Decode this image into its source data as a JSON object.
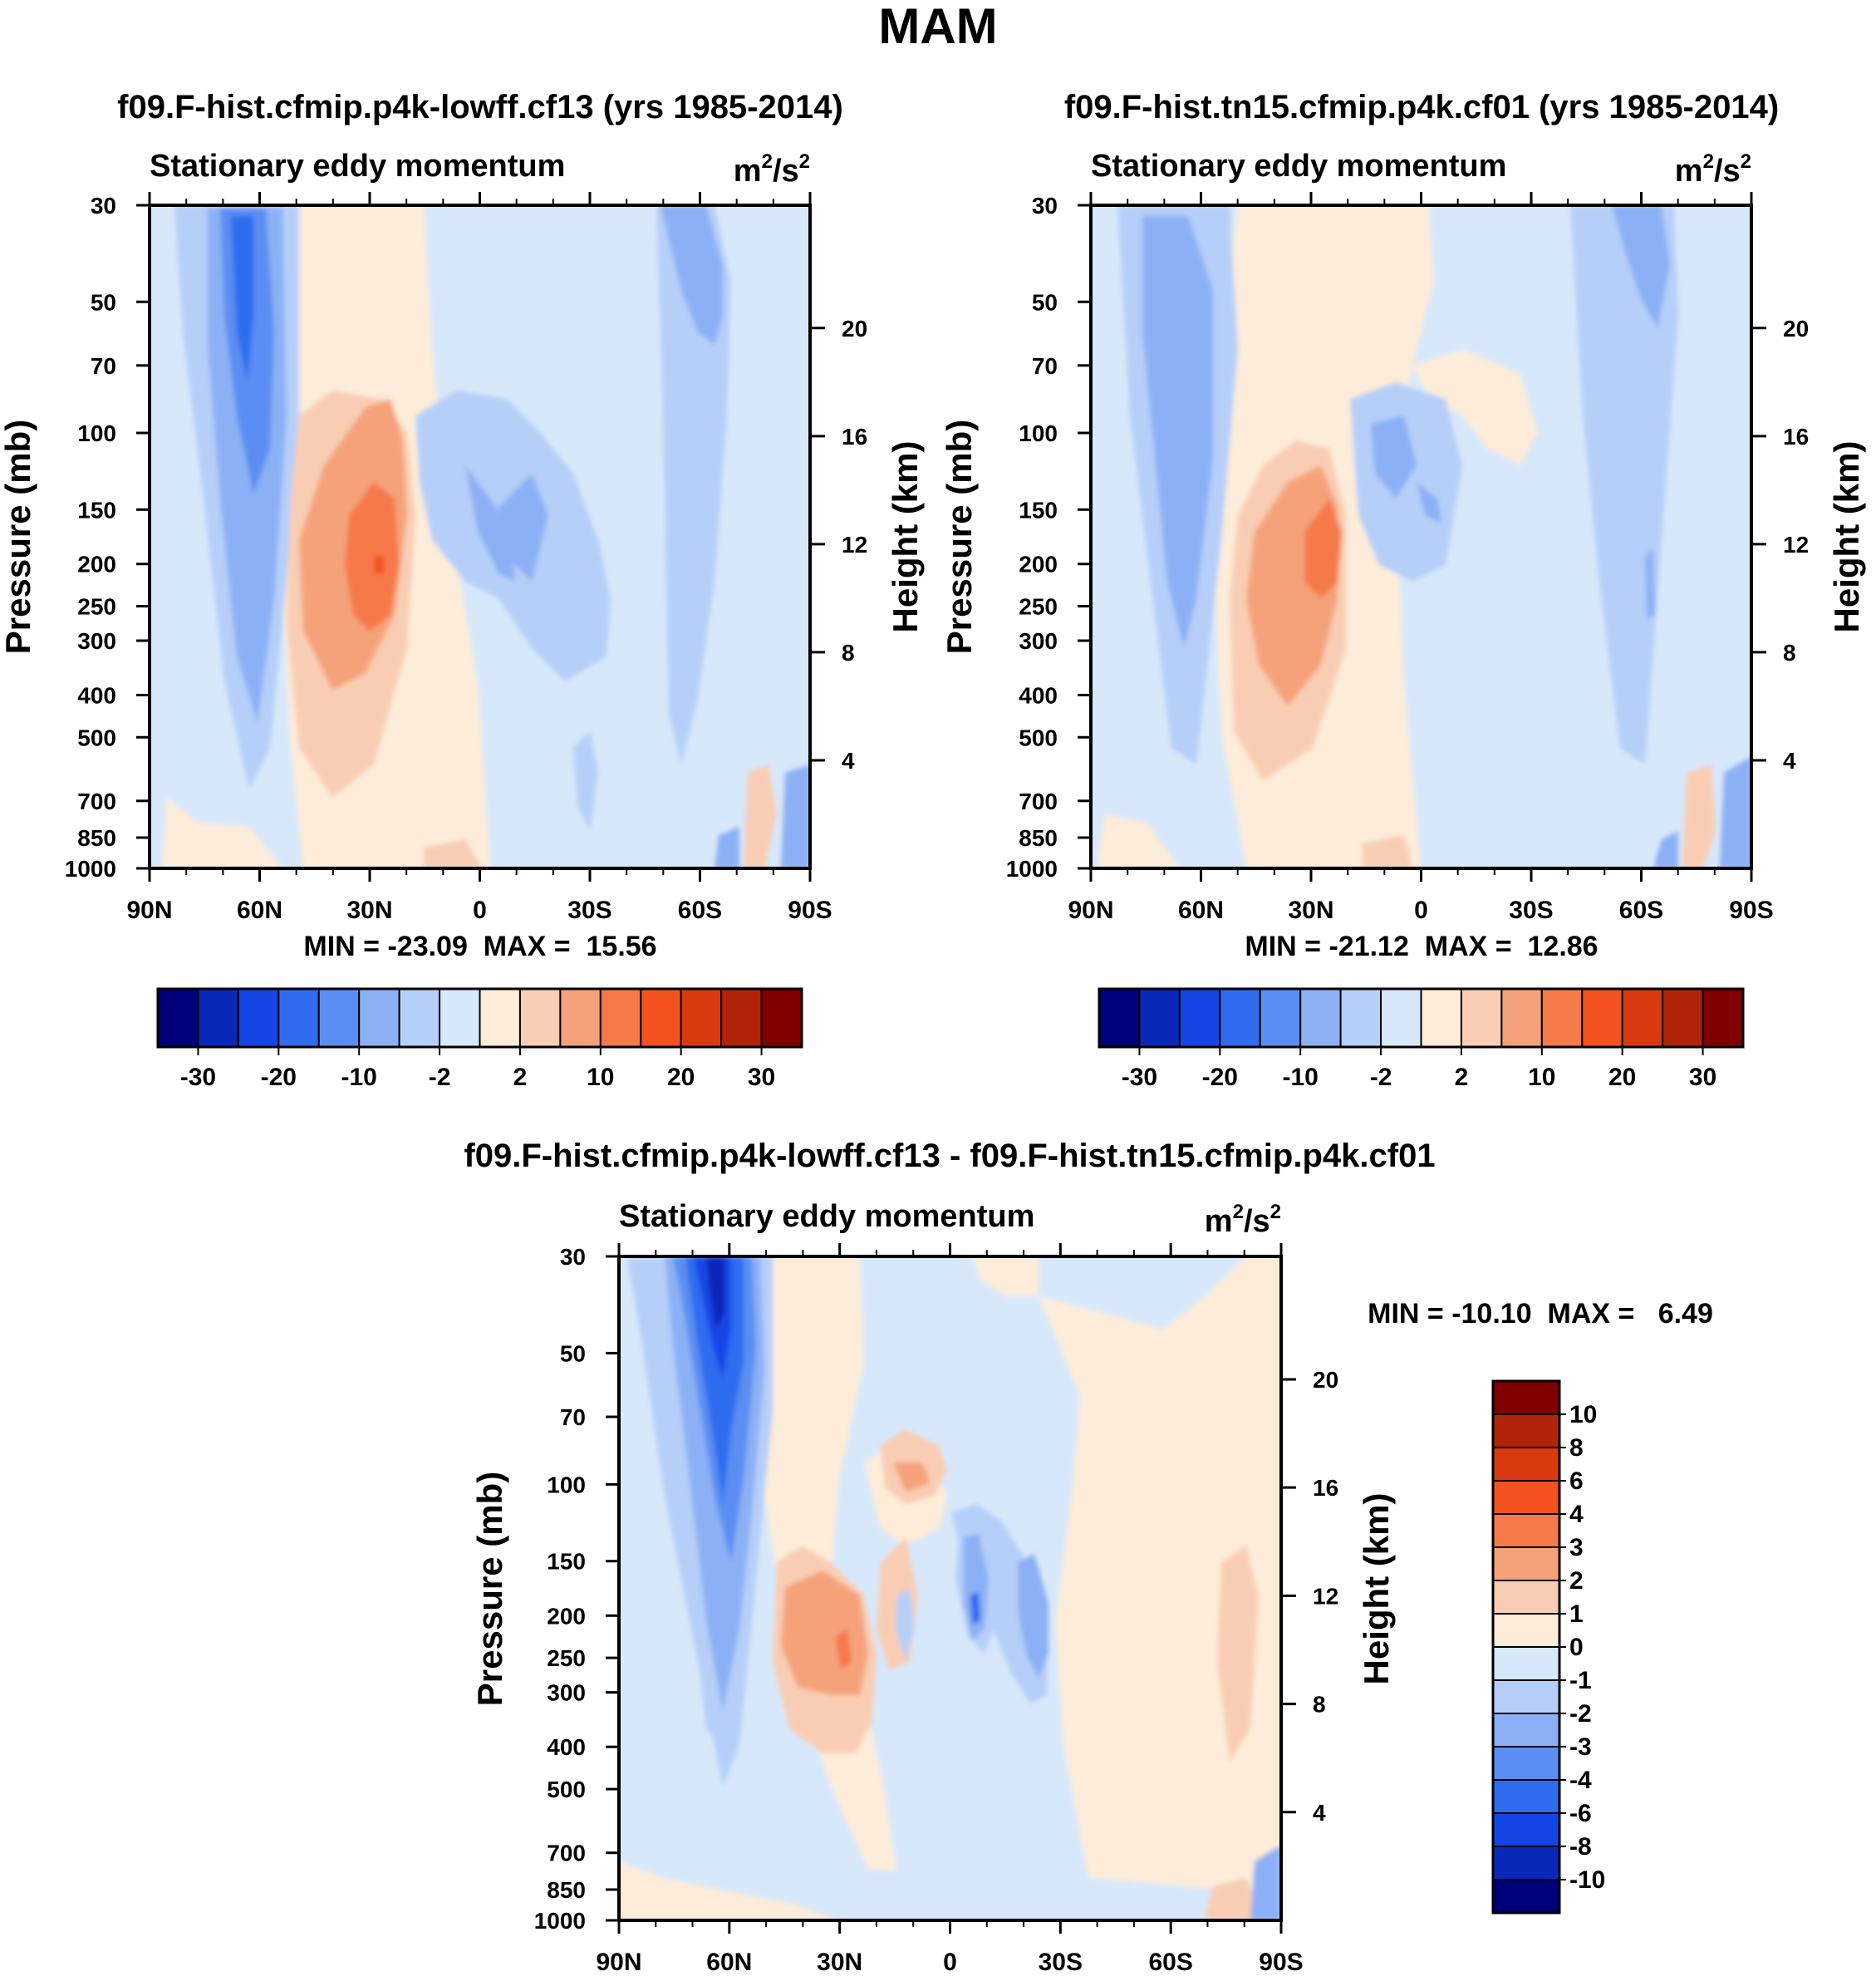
{
  "page_title": "MAM",
  "colors": {
    "cbar_main": [
      "#00007a",
      "#0a28b8",
      "#1446e6",
      "#2f6cf0",
      "#5a8ef2",
      "#8cb0f5",
      "#b6cff9",
      "#d8e8fb",
      "#fdecd9",
      "#f9cdb3",
      "#f5a27a",
      "#f6794a",
      "#f4521f",
      "#d93a0f",
      "#b12407",
      "#800000"
    ],
    "cbar_diff": [
      "#00007a",
      "#0a28b8",
      "#1446e6",
      "#2f6cf0",
      "#5a8ef2",
      "#8cb0f5",
      "#b6cff9",
      "#d8e8fb",
      "#fdecd9",
      "#f9cdb3",
      "#f5a27a",
      "#f6794a",
      "#f4521f",
      "#d93a0f",
      "#b12407",
      "#800000"
    ],
    "negative_light": "#d8e8fb",
    "positive_light": "#fdecd9"
  },
  "chart_data": [
    {
      "type": "heatmap",
      "title": "f09.F-hist.cfmip.p4k-lowff.cf13 (yrs 1985-2014)",
      "subtitle_left": "Stationary eddy momentum",
      "units": "m²/s²",
      "units_base": "m",
      "units_mid": "/s",
      "units_exp": "2",
      "xlabel": "",
      "ylabel": "Pressure (mb)",
      "ylabel_right": "Height (km)",
      "x_ticks": [
        "90N",
        "60N",
        "30N",
        "0",
        "30S",
        "60S",
        "90S"
      ],
      "y_ticks": [
        "30",
        "50",
        "70",
        "100",
        "150",
        "200",
        "250",
        "300",
        "400",
        "500",
        "700",
        "850",
        "1000"
      ],
      "y_right_ticks": [
        "20",
        "16",
        "12",
        "8",
        "4"
      ],
      "stats": "MIN = -23.09  MAX =  15.56",
      "min": -23.09,
      "max": 15.56,
      "colorbar_labels": [
        "-30",
        "-20",
        "-10",
        "-2",
        "2",
        "10",
        "20",
        "30"
      ]
    },
    {
      "type": "heatmap",
      "title": "f09.F-hist.tn15.cfmip.p4k.cf01 (yrs 1985-2014)",
      "subtitle_left": "Stationary eddy momentum",
      "units": "m²/s²",
      "units_base": "m",
      "units_mid": "/s",
      "units_exp": "2",
      "xlabel": "",
      "ylabel": "Pressure (mb)",
      "ylabel_right": "Height (km)",
      "x_ticks": [
        "90N",
        "60N",
        "30N",
        "0",
        "30S",
        "60S",
        "90S"
      ],
      "y_ticks": [
        "30",
        "50",
        "70",
        "100",
        "150",
        "200",
        "250",
        "300",
        "400",
        "500",
        "700",
        "850",
        "1000"
      ],
      "y_right_ticks": [
        "20",
        "16",
        "12",
        "8",
        "4"
      ],
      "stats": "MIN = -21.12  MAX =  12.86",
      "min": -21.12,
      "max": 12.86,
      "colorbar_labels": [
        "-30",
        "-20",
        "-10",
        "-2",
        "2",
        "10",
        "20",
        "30"
      ]
    },
    {
      "type": "heatmap",
      "title": "f09.F-hist.cfmip.p4k-lowff.cf13 - f09.F-hist.tn15.cfmip.p4k.cf01",
      "subtitle_left": "Stationary eddy momentum",
      "units": "m²/s²",
      "units_base": "m",
      "units_mid": "/s",
      "units_exp": "2",
      "xlabel": "",
      "ylabel": "Pressure (mb)",
      "ylabel_right": "Height (km)",
      "x_ticks": [
        "90N",
        "60N",
        "30N",
        "0",
        "30S",
        "60S",
        "90S"
      ],
      "y_ticks": [
        "30",
        "50",
        "70",
        "100",
        "150",
        "200",
        "250",
        "300",
        "400",
        "500",
        "700",
        "850",
        "1000"
      ],
      "y_right_ticks": [
        "20",
        "16",
        "12",
        "8",
        "4"
      ],
      "stats": "MIN = -10.10  MAX =   6.49",
      "min": -10.1,
      "max": 6.49,
      "colorbar_labels": [
        "10",
        "8",
        "6",
        "4",
        "3",
        "2",
        "1",
        "0",
        "-1",
        "-2",
        "-3",
        "-4",
        "-6",
        "-8",
        "-10"
      ]
    }
  ]
}
